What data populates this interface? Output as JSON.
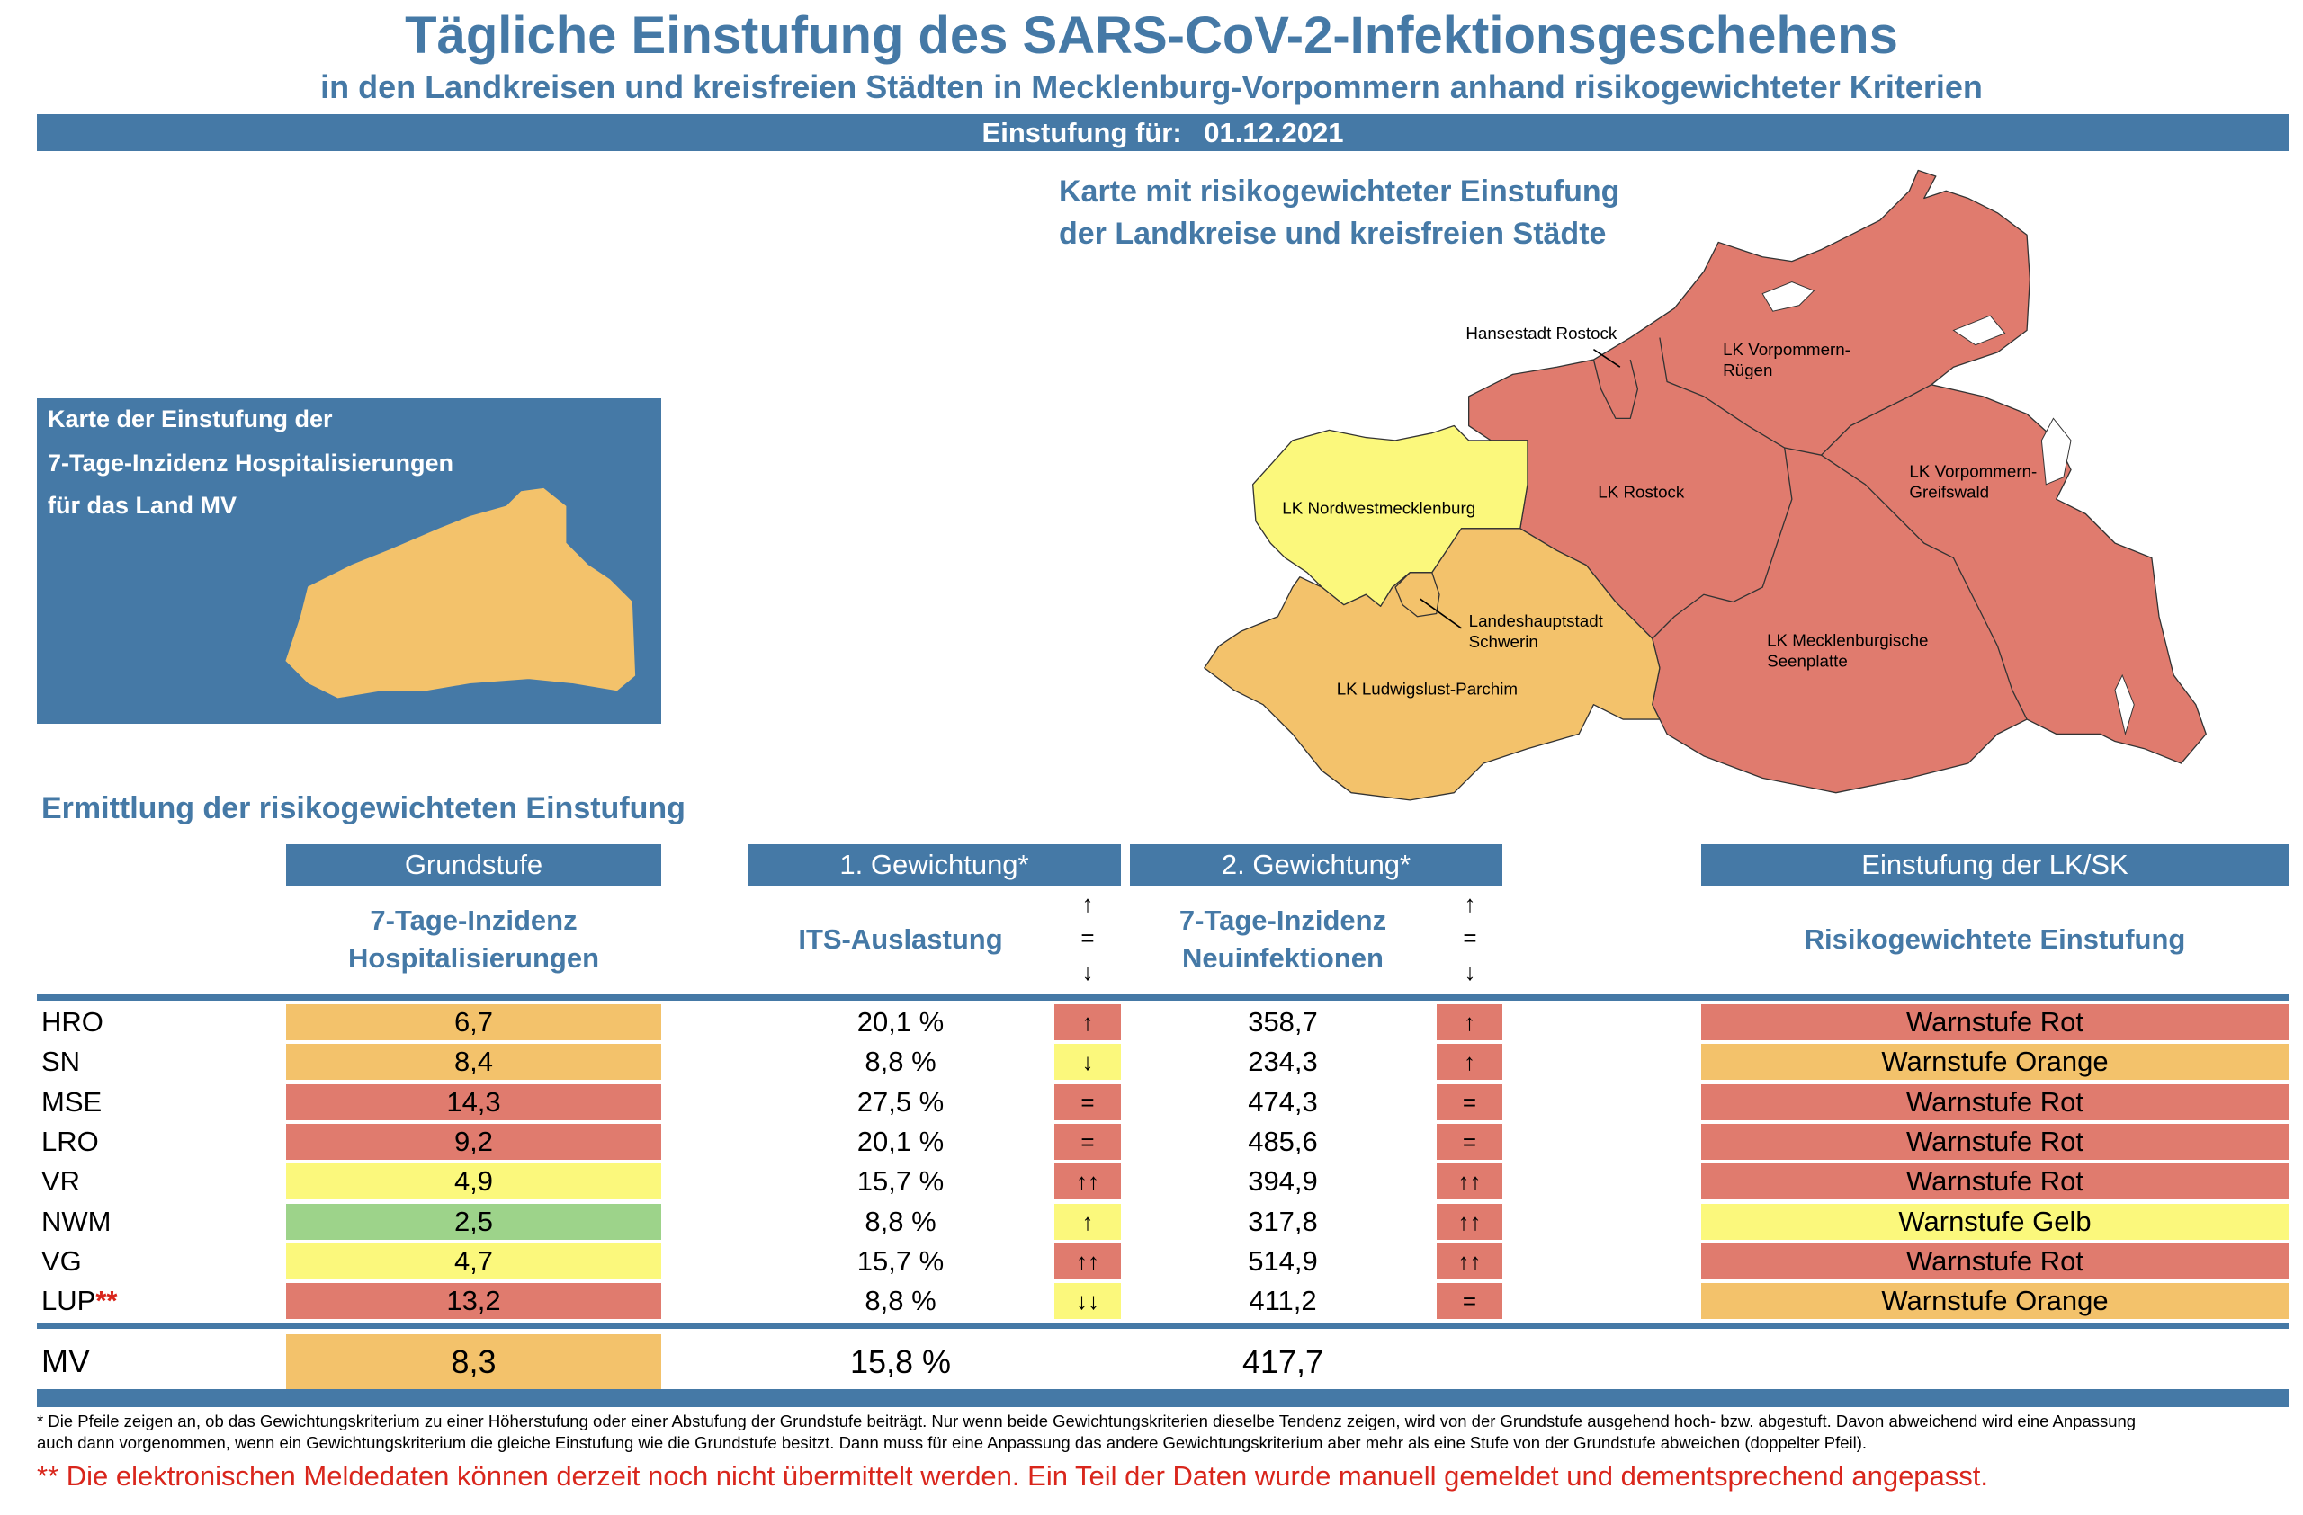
{
  "header": {
    "title": "Tägliche Einstufung des SARS-CoV-2-Infektionsgeschehens",
    "subtitle": "in den Landkreisen und kreisfreien Städten in Mecklenburg-Vorpommern anhand risikogewichteter Kriterien",
    "date_label": "Einstufung für:",
    "date_value": "01.12.2021"
  },
  "left_box": {
    "lines": [
      "Karte der Einstufung der",
      "7-Tage-Inzidenz Hospitalisierungen",
      "für das Land MV"
    ],
    "map_color": "#f3c26b"
  },
  "map": {
    "title_lines": [
      "Karte mit risikogewichteter Einstufung",
      "der Landkreise und kreisfreien Städte"
    ],
    "labels": {
      "hro": "Hansestadt Rostock",
      "vr1": "LK Vorpommern-",
      "vr2": "Rügen",
      "lro": "LK Rostock",
      "vg1": "LK Vorpommern-",
      "vg2": "Greifswald",
      "nwm": "LK Nordwestmecklenburg",
      "sn1": "Landeshauptstadt",
      "sn2": "Schwerin",
      "mse1": "LK Mecklenburgische",
      "mse2": "Seenplatte",
      "lup": "LK Ludwigslust-Parchim"
    }
  },
  "colors": {
    "rot": "#e07b6e",
    "orange": "#f3c26b",
    "gelb": "#fbf87c",
    "gruen": "#9dd38a",
    "accent": "#4579a6"
  },
  "table": {
    "section_title": "Ermittlung der risikogewichteten Einstufung",
    "headers": {
      "grundstufe": "Grundstufe",
      "gew1": "1. Gewichtung*",
      "gew2": "2. Gewichtung*",
      "einstufung": "Einstufung der LK/SK"
    },
    "subheaders": {
      "grund1": "7-Tage-Inzidenz",
      "grund2": "Hospitalisierungen",
      "its": "ITS-Auslastung",
      "neu1": "7-Tage-Inzidenz",
      "neu2": "Neuinfektionen",
      "risk": "Risikogewichtete Einstufung",
      "arrow_up": "↑",
      "arrow_eq": "=",
      "arrow_down": "↓"
    },
    "rows": [
      {
        "code": "HRO",
        "mark": "",
        "grund": "6,7",
        "grund_color": "orange",
        "its": "20,1 %",
        "its_arrow": "↑",
        "its_color": "rot",
        "neu": "358,7",
        "neu_arrow": "↑",
        "neu_color": "rot",
        "stufe": "Warnstufe Rot",
        "stufe_color": "rot"
      },
      {
        "code": "SN",
        "mark": "",
        "grund": "8,4",
        "grund_color": "orange",
        "its": "8,8 %",
        "its_arrow": "↓",
        "its_color": "gelb",
        "neu": "234,3",
        "neu_arrow": "↑",
        "neu_color": "rot",
        "stufe": "Warnstufe Orange",
        "stufe_color": "orange"
      },
      {
        "code": "MSE",
        "mark": "",
        "grund": "14,3",
        "grund_color": "rot",
        "its": "27,5 %",
        "its_arrow": "=",
        "its_color": "rot",
        "neu": "474,3",
        "neu_arrow": "=",
        "neu_color": "rot",
        "stufe": "Warnstufe Rot",
        "stufe_color": "rot"
      },
      {
        "code": "LRO",
        "mark": "",
        "grund": "9,2",
        "grund_color": "rot",
        "its": "20,1 %",
        "its_arrow": "=",
        "its_color": "rot",
        "neu": "485,6",
        "neu_arrow": "=",
        "neu_color": "rot",
        "stufe": "Warnstufe Rot",
        "stufe_color": "rot"
      },
      {
        "code": "VR",
        "mark": "",
        "grund": "4,9",
        "grund_color": "gelb",
        "its": "15,7 %",
        "its_arrow": "↑↑",
        "its_color": "rot",
        "neu": "394,9",
        "neu_arrow": "↑↑",
        "neu_color": "rot",
        "stufe": "Warnstufe Rot",
        "stufe_color": "rot"
      },
      {
        "code": "NWM",
        "mark": "",
        "grund": "2,5",
        "grund_color": "gruen",
        "its": "8,8 %",
        "its_arrow": "↑",
        "its_color": "gelb",
        "neu": "317,8",
        "neu_arrow": "↑↑",
        "neu_color": "rot",
        "stufe": "Warnstufe Gelb",
        "stufe_color": "gelb"
      },
      {
        "code": "VG",
        "mark": "",
        "grund": "4,7",
        "grund_color": "gelb",
        "its": "15,7 %",
        "its_arrow": "↑↑",
        "its_color": "rot",
        "neu": "514,9",
        "neu_arrow": "↑↑",
        "neu_color": "rot",
        "stufe": "Warnstufe Rot",
        "stufe_color": "rot"
      },
      {
        "code": "LUP",
        "mark": "**",
        "grund": "13,2",
        "grund_color": "rot",
        "its": "8,8 %",
        "its_arrow": "↓↓",
        "its_color": "gelb",
        "neu": "411,2",
        "neu_arrow": "=",
        "neu_color": "rot",
        "stufe": "Warnstufe Orange",
        "stufe_color": "orange"
      }
    ],
    "total": {
      "code": "MV",
      "grund": "8,3",
      "grund_color": "orange",
      "its": "15,8 %",
      "neu": "417,7"
    }
  },
  "footnotes": {
    "line1": "* Die Pfeile zeigen an, ob das Gewichtungskriterium zu einer Höherstufung oder einer Abstufung der Grundstufe beiträgt. Nur wenn beide Gewichtungskriterien dieselbe Tendenz zeigen, wird von der Grundstufe ausgehend hoch- bzw. abgestuft.  Davon abweichend wird eine Anpassung",
    "line2": "auch dann vorgenommen, wenn ein Gewichtungskriterium die gleiche Einstufung wie die Grundstufe besitzt. Dann muss für eine Anpassung das andere Gewichtungskriterium aber mehr als eine Stufe von der Grundstufe abweichen (doppelter Pfeil).",
    "red": "** Die elektronischen Meldedaten können derzeit noch nicht übermittelt werden. Ein Teil der Daten wurde manuell gemeldet und dementsprechend angepasst."
  }
}
